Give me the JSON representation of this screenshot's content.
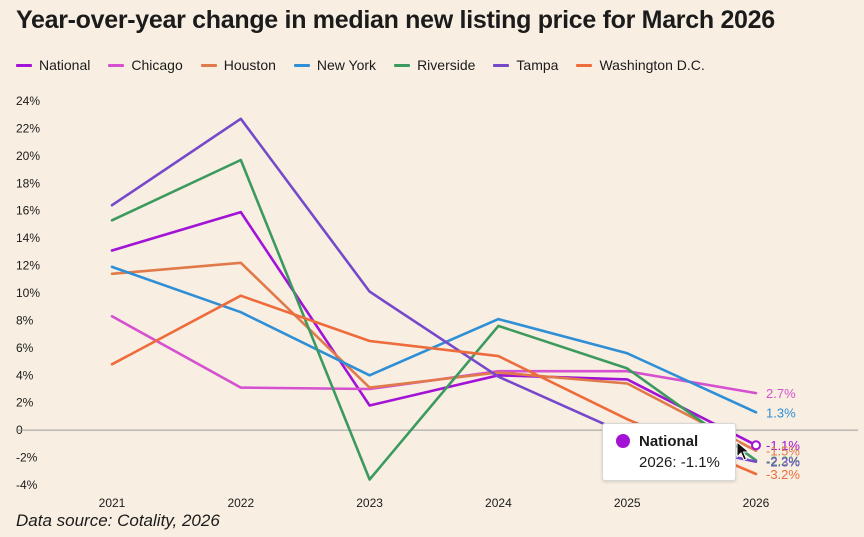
{
  "chart_data": {
    "type": "line",
    "title": "Year-over-year change in median new listing price for March 2026",
    "xlabel": "",
    "ylabel": "",
    "categories": [
      "2021",
      "2022",
      "2023",
      "2024",
      "2025",
      "2026"
    ],
    "ylim": [
      -4,
      24
    ],
    "y_ticks": [
      {
        "value": 24,
        "label": "24%"
      },
      {
        "value": 22,
        "label": "22%"
      },
      {
        "value": 20,
        "label": "20%"
      },
      {
        "value": 18,
        "label": "18%"
      },
      {
        "value": 16,
        "label": "16%"
      },
      {
        "value": 14,
        "label": "14%"
      },
      {
        "value": 12,
        "label": "12%"
      },
      {
        "value": 10,
        "label": "10%"
      },
      {
        "value": 8,
        "label": "8%"
      },
      {
        "value": 6,
        "label": "6%"
      },
      {
        "value": 4,
        "label": "4%"
      },
      {
        "value": 2,
        "label": "2%"
      },
      {
        "value": 0,
        "label": "0"
      },
      {
        "value": -2,
        "label": "-2%"
      },
      {
        "value": -4,
        "label": "-4%"
      }
    ],
    "grid": false,
    "legend_position": "top-left",
    "series": [
      {
        "name": "National",
        "color": "#a313d6",
        "values": [
          13.1,
          15.9,
          1.8,
          4.0,
          3.7,
          -1.1
        ],
        "end_label": "-1.1%"
      },
      {
        "name": "Chicago",
        "color": "#d551cf",
        "values": [
          8.3,
          3.1,
          3.0,
          4.3,
          4.3,
          2.7
        ],
        "end_label": "2.7%"
      },
      {
        "name": "Houston",
        "color": "#e07a4b",
        "values": [
          11.4,
          12.2,
          3.1,
          4.2,
          3.4,
          -1.5
        ],
        "end_label": "-1.5%"
      },
      {
        "name": "New York",
        "color": "#2f8fd6",
        "values": [
          11.9,
          8.6,
          4.0,
          8.1,
          5.6,
          1.3
        ],
        "end_label": "1.3%"
      },
      {
        "name": "Riverside",
        "color": "#3d9a5f",
        "values": [
          15.3,
          19.7,
          -3.6,
          7.6,
          4.5,
          -2.2
        ],
        "end_label": "-2.2%"
      },
      {
        "name": "Tampa",
        "color": "#7549c9",
        "values": [
          16.4,
          22.7,
          10.1,
          3.9,
          -0.3,
          -2.3
        ],
        "end_label": "-2.3%"
      },
      {
        "name": "Washington D.C.",
        "color": "#ee6c3c",
        "values": [
          4.8,
          9.8,
          6.5,
          5.4,
          0.8,
          -3.2
        ],
        "end_label": "-3.2%"
      }
    ],
    "highlight": {
      "series": "National",
      "x": "2026",
      "value": -1.1
    }
  },
  "tooltip": {
    "series": "National",
    "value_text": "2026: -1.1%",
    "color": "#a313d6"
  },
  "source": "Data source: Cotality, 2026",
  "colors": {
    "background": "#f8efe2",
    "zero_line": "#9a9a9a"
  },
  "icons": {
    "cursor": "mouse-pointer-icon"
  }
}
